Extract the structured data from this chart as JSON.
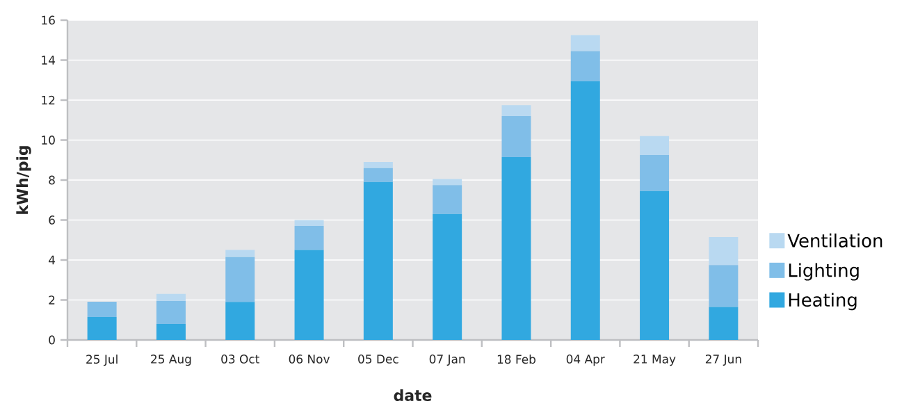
{
  "chart_data": {
    "type": "bar",
    "stacked": true,
    "xlabel": "date",
    "ylabel": "kWh/pig",
    "categories": [
      "25 Jul",
      "25 Aug",
      "03 Oct",
      "06 Nov",
      "05 Dec",
      "07 Jan",
      "18 Feb",
      "04 Apr",
      "21 May",
      "27 Jun"
    ],
    "series": [
      {
        "name": "Heating",
        "color": "#31a8e0",
        "values": [
          1.15,
          0.8,
          1.9,
          4.5,
          7.9,
          6.3,
          9.15,
          12.95,
          7.45,
          1.65
        ]
      },
      {
        "name": "Lighting",
        "color": "#80bee8",
        "values": [
          0.76,
          1.15,
          2.25,
          1.2,
          0.7,
          1.45,
          2.05,
          1.5,
          1.8,
          2.1
        ]
      },
      {
        "name": "Ventilation",
        "color": "#b9d9f1",
        "values": [
          0,
          0.35,
          0.35,
          0.3,
          0.3,
          0.3,
          0.55,
          0.8,
          0.95,
          1.4
        ]
      }
    ],
    "ylim": [
      0,
      16
    ],
    "yticks": [
      0,
      2,
      4,
      6,
      8,
      10,
      12,
      14,
      16
    ],
    "grid": "y",
    "legend": "right"
  }
}
